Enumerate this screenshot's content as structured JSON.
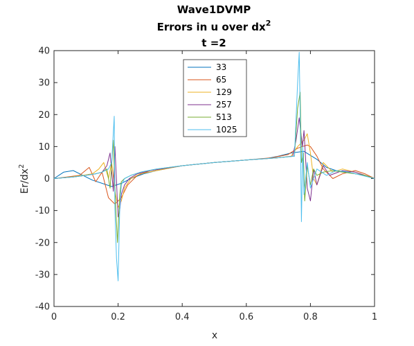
{
  "chart_data": {
    "type": "line",
    "title": [
      "Wave1DVMP",
      "Errors in u over dx",
      "t =2"
    ],
    "title_superscript": "2",
    "xlabel": "x",
    "ylabel": "Er/dx",
    "ylabel_superscript": "2",
    "xlim": [
      0,
      1
    ],
    "ylim": [
      -40,
      40
    ],
    "xticks": [
      0,
      0.2,
      0.4,
      0.6,
      0.8,
      1
    ],
    "xtick_labels": [
      "0",
      "0.2",
      "0.4",
      "0.6",
      "0.8",
      "1"
    ],
    "yticks": [
      -40,
      -30,
      -20,
      -10,
      0,
      10,
      20,
      30,
      40
    ],
    "ytick_labels": [
      "-40",
      "-30",
      "-20",
      "-10",
      "0",
      "10",
      "20",
      "30",
      "40"
    ],
    "grid": false,
    "legend_position": "top-center",
    "series": [
      {
        "name": "33",
        "color": "#0072BD",
        "x": [
          0,
          0.03,
          0.06,
          0.09,
          0.12,
          0.15,
          0.18,
          0.21,
          0.24,
          0.28,
          0.32,
          0.4,
          0.5,
          0.6,
          0.66,
          0.7,
          0.74,
          0.78,
          0.82,
          0.85,
          0.88,
          0.91,
          0.94,
          0.97,
          1.0
        ],
        "y": [
          0,
          2,
          2.5,
          1,
          -0.5,
          -1.5,
          -2.5,
          -1.5,
          0,
          1.5,
          2.5,
          4,
          5,
          5.8,
          6.2,
          7,
          8,
          8.5,
          6,
          3.5,
          2.5,
          2,
          1.5,
          1,
          0
        ]
      },
      {
        "name": "65",
        "color": "#D95319",
        "x": [
          0,
          0.04,
          0.08,
          0.11,
          0.13,
          0.15,
          0.17,
          0.19,
          0.21,
          0.23,
          0.26,
          0.3,
          0.4,
          0.5,
          0.6,
          0.68,
          0.73,
          0.76,
          0.79,
          0.8,
          0.82,
          0.84,
          0.87,
          0.9,
          0.94,
          0.97,
          1.0
        ],
        "y": [
          0,
          0.5,
          1,
          3.5,
          -1,
          2,
          -6,
          -8,
          -6,
          -2,
          1,
          2.5,
          4,
          5,
          5.8,
          6.5,
          7.5,
          9.5,
          10.5,
          10,
          7,
          3,
          0,
          1.5,
          2.5,
          1.5,
          0
        ]
      },
      {
        "name": "129",
        "color": "#EDB120",
        "x": [
          0,
          0.05,
          0.09,
          0.12,
          0.14,
          0.155,
          0.17,
          0.18,
          0.19,
          0.2,
          0.21,
          0.22,
          0.24,
          0.27,
          0.32,
          0.4,
          0.5,
          0.6,
          0.7,
          0.74,
          0.76,
          0.78,
          0.79,
          0.8,
          0.81,
          0.82,
          0.84,
          0.87,
          0.9,
          0.94,
          0.97,
          1.0
        ],
        "y": [
          0,
          0.5,
          1,
          1.5,
          3,
          5,
          0,
          5,
          -4,
          -9,
          -7,
          -3,
          0,
          1.5,
          2.5,
          4,
          5,
          5.8,
          6.5,
          7,
          10,
          12,
          14,
          8,
          0,
          -2,
          5,
          2,
          3,
          2,
          1,
          0
        ]
      },
      {
        "name": "257",
        "color": "#7E2F8E",
        "x": [
          0,
          0.06,
          0.1,
          0.13,
          0.15,
          0.165,
          0.175,
          0.185,
          0.19,
          0.2,
          0.205,
          0.21,
          0.22,
          0.235,
          0.26,
          0.3,
          0.4,
          0.5,
          0.6,
          0.7,
          0.745,
          0.755,
          0.765,
          0.775,
          0.78,
          0.79,
          0.8,
          0.81,
          0.82,
          0.84,
          0.86,
          0.9,
          0.94,
          0.97,
          1.0
        ],
        "y": [
          0,
          0.5,
          1,
          1.5,
          2,
          4,
          8,
          -4,
          10,
          -12,
          -10,
          -5,
          -2,
          0,
          1.5,
          2.5,
          4,
          5,
          5.8,
          6.5,
          7,
          12,
          19,
          10,
          15,
          -3,
          -7,
          3,
          -2,
          4,
          1,
          2.5,
          2,
          1,
          0
        ]
      },
      {
        "name": "513",
        "color": "#77AC30",
        "x": [
          0,
          0.06,
          0.1,
          0.13,
          0.15,
          0.165,
          0.175,
          0.185,
          0.192,
          0.198,
          0.2,
          0.205,
          0.21,
          0.22,
          0.24,
          0.27,
          0.32,
          0.4,
          0.5,
          0.6,
          0.7,
          0.75,
          0.76,
          0.768,
          0.772,
          0.778,
          0.782,
          0.79,
          0.8,
          0.81,
          0.82,
          0.84,
          0.87,
          0.9,
          0.94,
          0.97,
          1.0
        ],
        "y": [
          0,
          0.5,
          1,
          1.5,
          2,
          3,
          -3,
          12,
          -8,
          -20,
          -16,
          -5,
          -1,
          0,
          1,
          2,
          3,
          4,
          5,
          5.8,
          6.5,
          7,
          22,
          27,
          5,
          8,
          -7,
          4,
          -2,
          3,
          1,
          2,
          2.5,
          2,
          1.5,
          1,
          0
        ]
      },
      {
        "name": "1025",
        "color": "#4DBEEE",
        "x": [
          0,
          0.06,
          0.1,
          0.13,
          0.15,
          0.17,
          0.18,
          0.188,
          0.19,
          0.195,
          0.2,
          0.205,
          0.21,
          0.22,
          0.24,
          0.27,
          0.32,
          0.4,
          0.5,
          0.6,
          0.7,
          0.75,
          0.76,
          0.765,
          0.768,
          0.772,
          0.776,
          0.78,
          0.79,
          0.8,
          0.82,
          0.85,
          0.88,
          0.92,
          0.96,
          0.98,
          1.0
        ],
        "y": [
          0,
          0.5,
          1,
          1.5,
          2,
          3,
          5,
          19.5,
          -10,
          -25,
          -32,
          -10,
          -2,
          0,
          1,
          2,
          3,
          4,
          5,
          5.8,
          6.5,
          7,
          30,
          39.5,
          20,
          -13.5,
          10,
          -5,
          5,
          -3,
          3,
          1,
          2.5,
          2,
          1,
          0.5,
          0
        ]
      }
    ]
  }
}
